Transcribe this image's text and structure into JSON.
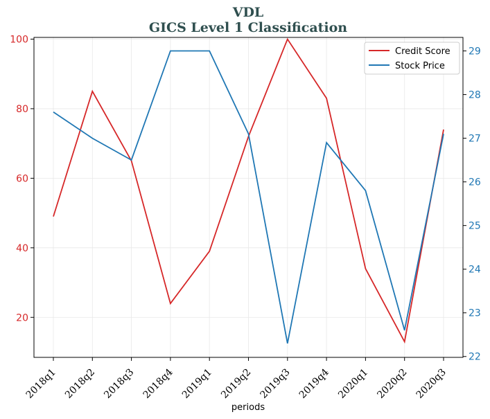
{
  "chart_data": {
    "type": "line",
    "title": "VDL",
    "subtitle": "GICS Level 1 Classification",
    "xlabel": "periods",
    "categories": [
      "2018q1",
      "2018q2",
      "2018q3",
      "2018q4",
      "2019q1",
      "2019q2",
      "2019q3",
      "2019q4",
      "2020q1",
      "2020q2",
      "2020q3"
    ],
    "y_left": {
      "ticks": [
        20,
        40,
        60,
        80,
        100
      ],
      "ylim": [
        8.5,
        100.5
      ],
      "color": "#d62728"
    },
    "y_right": {
      "ticks": [
        22,
        23,
        24,
        25,
        26,
        27,
        28,
        29
      ],
      "ylim": [
        21.98,
        29.31
      ],
      "color": "#1f77b4"
    },
    "series": [
      {
        "name": "Credit Score",
        "axis": "left",
        "color": "#d62728",
        "values": [
          49,
          85,
          65,
          24,
          39,
          72,
          100,
          83,
          34,
          13,
          74
        ]
      },
      {
        "name": "Stock Price",
        "axis": "right",
        "color": "#1f77b4",
        "values": [
          27.6,
          27.0,
          26.5,
          29.0,
          29.0,
          27.1,
          22.3,
          26.9,
          25.8,
          22.6,
          27.1
        ]
      }
    ],
    "grid": true,
    "legend_position": "top-right"
  }
}
